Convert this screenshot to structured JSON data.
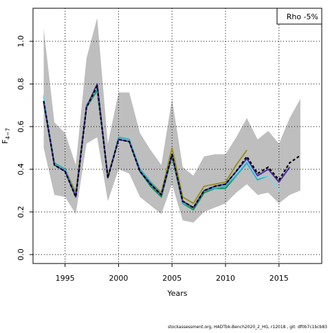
{
  "chart_data": {
    "type": "line",
    "annotation": "Rho -5%",
    "xlabel": "Years",
    "ylabel": "F",
    "ylabel_sub": "4−7",
    "footer": "stockassessment.org, HADTbk-Bench2020_2_HG, r12018 , git: df0b7c1bcb83",
    "x": [
      1993,
      1994,
      1995,
      1996,
      1997,
      1998,
      1999,
      2000,
      2001,
      2002,
      2003,
      2004,
      2005,
      2006,
      2007,
      2008,
      2009,
      2010,
      2011,
      2012,
      2013,
      2014,
      2015,
      2016,
      2017
    ],
    "xlim": [
      1992,
      2019
    ],
    "xticks": [
      1995,
      2000,
      2005,
      2010,
      2015
    ],
    "ylim": [
      -0.042,
      1.155
    ],
    "yticks": [
      {
        "value": 0,
        "label": "0.0"
      },
      0.2,
      0.4,
      0.6,
      0.8,
      {
        "value": 1,
        "label": "1.0"
      }
    ],
    "grid": true,
    "band": {
      "color": "#bebebe",
      "upper": [
        1.06,
        0.62,
        0.57,
        0.42,
        0.92,
        1.11,
        0.52,
        0.76,
        0.76,
        0.57,
        0.49,
        0.42,
        0.73,
        0.41,
        0.37,
        0.46,
        0.47,
        0.47,
        0.55,
        0.64,
        0.54,
        0.58,
        0.52,
        0.64,
        0.73
      ],
      "lower": [
        0.5,
        0.28,
        0.27,
        0.19,
        0.52,
        0.55,
        0.25,
        0.4,
        0.38,
        0.27,
        0.23,
        0.19,
        0.33,
        0.16,
        0.15,
        0.2,
        0.22,
        0.24,
        0.29,
        0.33,
        0.28,
        0.29,
        0.24,
        0.28,
        0.3
      ]
    },
    "series": [
      {
        "color": "#9a9020",
        "values": [
          0.72,
          0.43,
          0.4,
          0.29,
          0.7,
          0.77,
          0.37,
          0.54,
          0.53,
          0.4,
          0.34,
          0.29,
          0.5,
          0.27,
          0.24,
          0.32,
          0.33,
          0.34,
          0.42,
          0.49,
          null,
          null,
          null,
          null,
          null
        ]
      },
      {
        "color": "#1a9060",
        "values": [
          0.71,
          0.42,
          0.39,
          0.28,
          0.69,
          0.77,
          0.36,
          0.54,
          0.53,
          0.39,
          0.32,
          0.27,
          0.46,
          0.24,
          0.21,
          0.29,
          0.31,
          0.31,
          0.37,
          0.43,
          0.36,
          null,
          null,
          null,
          null
        ]
      },
      {
        "color": "#2bb0c0",
        "values": [
          0.74,
          0.43,
          0.4,
          0.27,
          0.7,
          0.78,
          0.36,
          0.55,
          0.54,
          0.4,
          0.34,
          0.28,
          0.47,
          0.24,
          0.22,
          0.3,
          0.31,
          0.32,
          0.37,
          0.43,
          0.35,
          0.37,
          null,
          null,
          null
        ]
      },
      {
        "color": "#8fd0ea",
        "values": [
          0.75,
          0.42,
          0.39,
          0.27,
          0.69,
          0.79,
          0.36,
          0.54,
          0.53,
          0.39,
          0.33,
          0.28,
          0.47,
          0.25,
          0.22,
          0.3,
          0.32,
          0.33,
          0.38,
          0.44,
          0.36,
          0.37,
          0.3,
          null,
          null
        ]
      },
      {
        "color": "#4b2c9e",
        "values": [
          0.72,
          0.42,
          0.39,
          0.27,
          0.69,
          0.8,
          0.36,
          0.54,
          0.53,
          0.39,
          0.33,
          0.28,
          0.47,
          0.25,
          0.22,
          0.3,
          0.32,
          0.33,
          0.39,
          0.45,
          0.37,
          0.4,
          0.34,
          0.41,
          null
        ]
      },
      {
        "color": "#000000",
        "linestyle": "dashed",
        "values": [
          0.72,
          0.42,
          0.39,
          0.27,
          0.69,
          0.79,
          0.36,
          0.54,
          0.53,
          0.39,
          0.33,
          0.28,
          0.47,
          0.25,
          0.22,
          0.3,
          0.32,
          0.33,
          0.39,
          0.46,
          0.38,
          0.41,
          0.35,
          0.43,
          0.465
        ]
      }
    ]
  }
}
